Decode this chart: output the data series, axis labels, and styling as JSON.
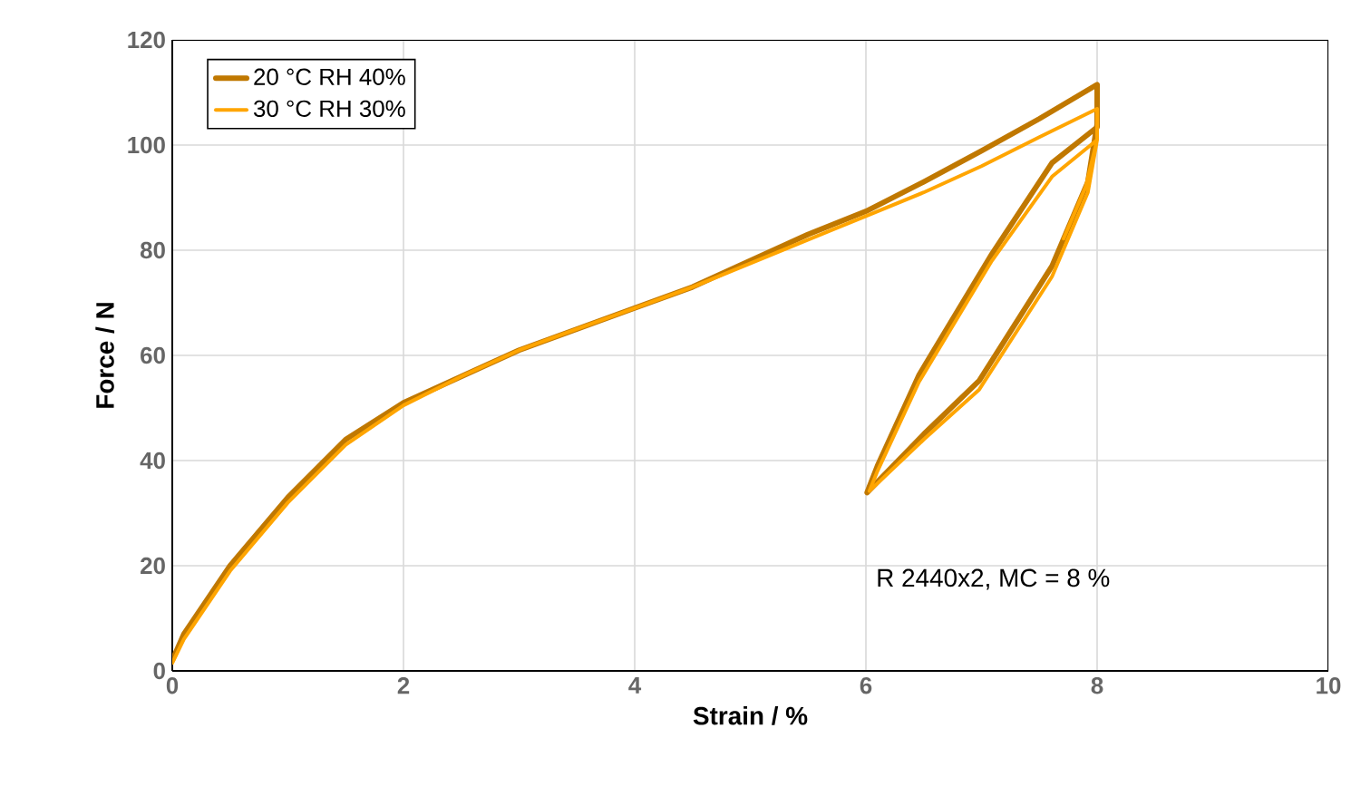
{
  "chart_data": {
    "type": "line",
    "xlabel": "Strain / %",
    "ylabel": "Force / N",
    "xlim": [
      0,
      10
    ],
    "xticks": [
      0,
      2,
      4,
      6,
      8,
      10
    ],
    "ylim": [
      0,
      120
    ],
    "yticks": [
      0,
      20,
      40,
      60,
      80,
      100,
      120
    ],
    "grid": true,
    "legend": "top left",
    "marker": "none",
    "line_style": "solid",
    "annotations": [
      "R 2440x2, MC = 8 %"
    ],
    "series": [
      {
        "name": "20 °C  RH 40%",
        "color": "#c07800",
        "x": [
          0,
          0.1,
          0.5,
          1,
          1.5,
          2,
          2.5,
          3,
          3.5,
          4,
          4.5,
          5,
          5.5,
          6,
          6.5,
          7,
          7.5,
          8,
          8,
          7.92,
          7.61,
          6.98,
          6.5,
          6.01,
          6.1,
          6.46,
          7.09,
          7.61,
          8,
          8
        ],
        "values": [
          2,
          7,
          20,
          33,
          44,
          51,
          56,
          61,
          65,
          69,
          73,
          78,
          83,
          87.4,
          93,
          98.9,
          105,
          111.5,
          104,
          93,
          77,
          55.2,
          45,
          33.9,
          39,
          56.3,
          79.3,
          96.6,
          103.4,
          108
        ]
      },
      {
        "name": "30 °C  RH 30%",
        "color": "#ffa500",
        "x": [
          0,
          0.1,
          0.5,
          1,
          1.5,
          2,
          2.5,
          3,
          3.5,
          4,
          4.5,
          5,
          5.5,
          6,
          6.5,
          7,
          7.5,
          8,
          8,
          7.92,
          7.61,
          6.98,
          6.5,
          6.03,
          6.1,
          6.46,
          7.09,
          7.61,
          8,
          7.9,
          7.71
        ],
        "values": [
          1.5,
          6,
          19,
          32,
          43,
          50.5,
          56,
          61,
          65,
          69,
          73,
          77.5,
          82,
          86.5,
          91,
          96,
          101.5,
          106.9,
          101,
          91,
          75,
          53.5,
          44,
          34.2,
          38,
          55,
          78,
          94,
          101,
          92,
          82.2
        ]
      }
    ]
  }
}
